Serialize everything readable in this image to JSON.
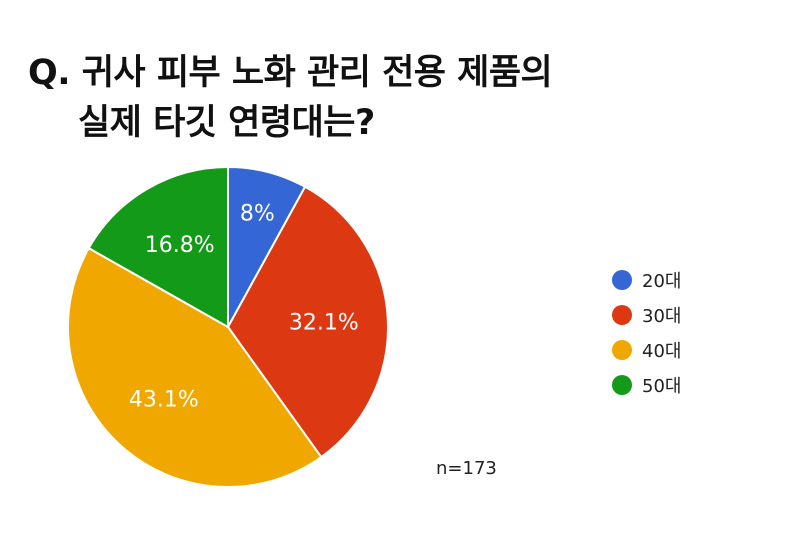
{
  "title": {
    "line1": "Q. 귀사 피부 노화 관리 전용 제품의",
    "line2": "실제 타깃 연령대는?"
  },
  "note": "n=173",
  "chart_data": {
    "type": "pie",
    "categories": [
      "20대",
      "30대",
      "40대",
      "50대"
    ],
    "values": [
      8,
      32.1,
      43.1,
      16.8
    ],
    "labels": [
      "8%",
      "32.1%",
      "43.1%",
      "16.8%"
    ],
    "colors": [
      "#3566d6",
      "#dc3913",
      "#f0a800",
      "#149a19"
    ],
    "legend": "right"
  }
}
